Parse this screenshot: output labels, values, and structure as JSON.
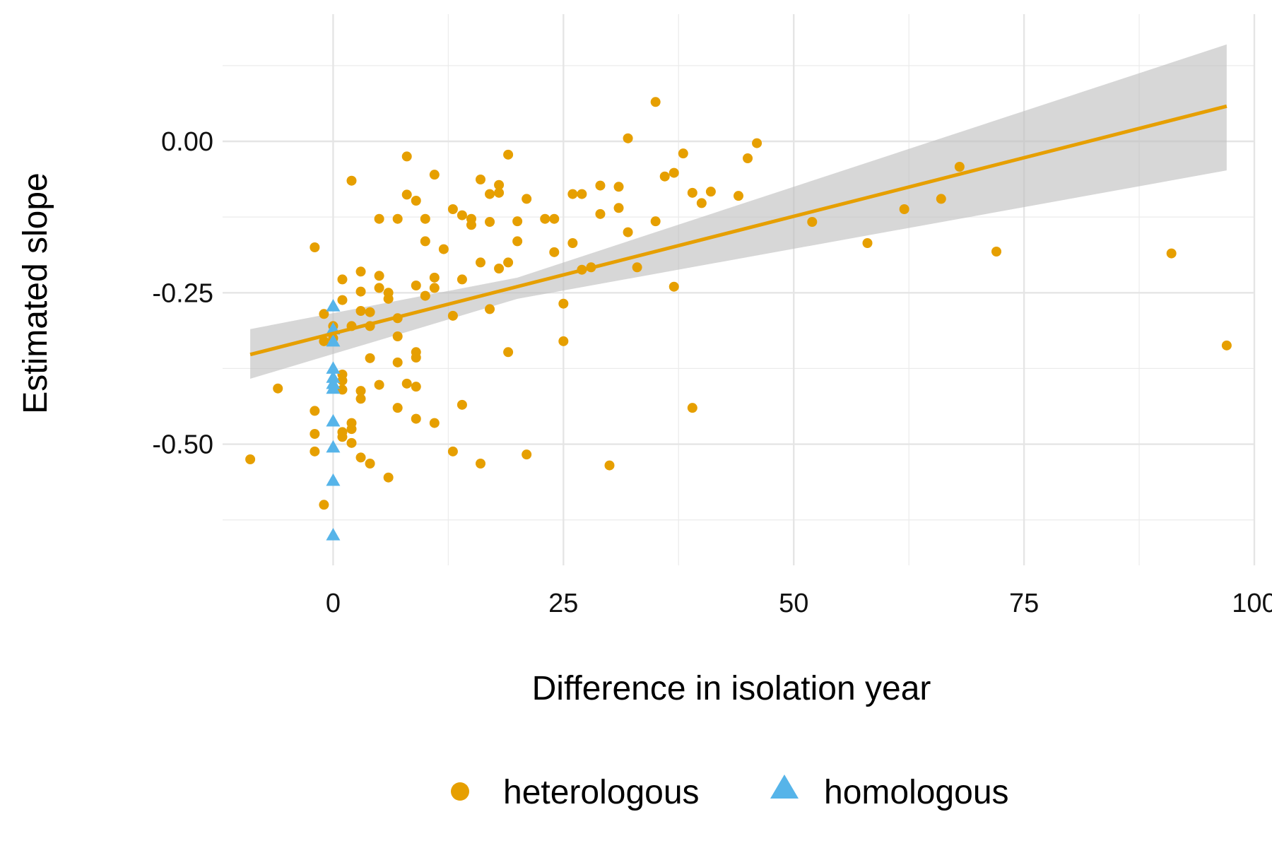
{
  "chart_data": {
    "type": "scatter",
    "title": "",
    "xlabel": "Difference in isolation year",
    "ylabel": "Estimated slope",
    "xlim": [
      -12,
      100
    ],
    "ylim": [
      -0.7,
      0.21
    ],
    "x_ticks": [
      0,
      25,
      50,
      75,
      100
    ],
    "x_tick_labels": [
      "0",
      "25",
      "50",
      "75",
      "100"
    ],
    "y_ticks": [
      -0.5,
      -0.25,
      0,
      0.25
    ],
    "y_tick_labels": [
      "-0.50",
      "-0.25",
      "0.00",
      ""
    ],
    "grid": true,
    "legend_position": "bottom",
    "series": [
      {
        "name": "heterologous",
        "color": "#E69F00",
        "marker": "circle",
        "points": [
          [
            -9,
            -0.525
          ],
          [
            -6,
            -0.408
          ],
          [
            -2,
            -0.175
          ],
          [
            -2,
            -0.445
          ],
          [
            -2,
            -0.483
          ],
          [
            -2,
            -0.512
          ],
          [
            -1,
            -0.285
          ],
          [
            -1,
            -0.33
          ],
          [
            -1,
            -0.6
          ],
          [
            0,
            -0.305
          ],
          [
            0,
            -0.325
          ],
          [
            1,
            -0.228
          ],
          [
            1,
            -0.262
          ],
          [
            1,
            -0.385
          ],
          [
            1,
            -0.395
          ],
          [
            1,
            -0.41
          ],
          [
            1,
            -0.48
          ],
          [
            1,
            -0.488
          ],
          [
            2,
            -0.065
          ],
          [
            2,
            -0.305
          ],
          [
            2,
            -0.465
          ],
          [
            2,
            -0.475
          ],
          [
            2,
            -0.498
          ],
          [
            3,
            -0.215
          ],
          [
            3,
            -0.248
          ],
          [
            3,
            -0.28
          ],
          [
            3,
            -0.412
          ],
          [
            3,
            -0.425
          ],
          [
            3,
            -0.522
          ],
          [
            4,
            -0.282
          ],
          [
            4,
            -0.305
          ],
          [
            4,
            -0.358
          ],
          [
            4,
            -0.532
          ],
          [
            5,
            -0.128
          ],
          [
            5,
            -0.222
          ],
          [
            5,
            -0.242
          ],
          [
            5,
            -0.402
          ],
          [
            6,
            -0.25
          ],
          [
            6,
            -0.26
          ],
          [
            6,
            -0.555
          ],
          [
            7,
            -0.128
          ],
          [
            7,
            -0.292
          ],
          [
            7,
            -0.322
          ],
          [
            7,
            -0.365
          ],
          [
            7,
            -0.44
          ],
          [
            8,
            -0.025
          ],
          [
            8,
            -0.088
          ],
          [
            8,
            -0.4
          ],
          [
            9,
            -0.098
          ],
          [
            9,
            -0.238
          ],
          [
            9,
            -0.348
          ],
          [
            9,
            -0.357
          ],
          [
            9,
            -0.405
          ],
          [
            9,
            -0.458
          ],
          [
            10,
            -0.128
          ],
          [
            10,
            -0.165
          ],
          [
            10,
            -0.255
          ],
          [
            11,
            -0.055
          ],
          [
            11,
            -0.225
          ],
          [
            11,
            -0.242
          ],
          [
            11,
            -0.465
          ],
          [
            12,
            -0.178
          ],
          [
            13,
            -0.112
          ],
          [
            13,
            -0.288
          ],
          [
            13,
            -0.512
          ],
          [
            14,
            -0.122
          ],
          [
            14,
            -0.228
          ],
          [
            14,
            -0.435
          ],
          [
            15,
            -0.128
          ],
          [
            15,
            -0.138
          ],
          [
            16,
            -0.063
          ],
          [
            16,
            -0.2
          ],
          [
            16,
            -0.532
          ],
          [
            17,
            -0.087
          ],
          [
            17,
            -0.133
          ],
          [
            17,
            -0.277
          ],
          [
            18,
            -0.072
          ],
          [
            18,
            -0.085
          ],
          [
            18,
            -0.21
          ],
          [
            19,
            -0.022
          ],
          [
            19,
            -0.2
          ],
          [
            19,
            -0.348
          ],
          [
            20,
            -0.132
          ],
          [
            20,
            -0.165
          ],
          [
            21,
            -0.095
          ],
          [
            21,
            -0.517
          ],
          [
            23,
            -0.128
          ],
          [
            24,
            -0.128
          ],
          [
            24,
            -0.183
          ],
          [
            25,
            -0.268
          ],
          [
            25,
            -0.33
          ],
          [
            26,
            -0.087
          ],
          [
            26,
            -0.168
          ],
          [
            27,
            -0.087
          ],
          [
            27,
            -0.212
          ],
          [
            28,
            -0.208
          ],
          [
            29,
            -0.073
          ],
          [
            29,
            -0.12
          ],
          [
            30,
            -0.535
          ],
          [
            31,
            -0.075
          ],
          [
            31,
            -0.11
          ],
          [
            32,
            0.005
          ],
          [
            32,
            -0.15
          ],
          [
            33,
            -0.208
          ],
          [
            35,
            0.065
          ],
          [
            35,
            -0.132
          ],
          [
            36,
            -0.058
          ],
          [
            37,
            -0.052
          ],
          [
            37,
            -0.24
          ],
          [
            38,
            -0.02
          ],
          [
            39,
            -0.085
          ],
          [
            39,
            -0.44
          ],
          [
            40,
            -0.102
          ],
          [
            41,
            -0.083
          ],
          [
            44,
            -0.09
          ],
          [
            45,
            -0.028
          ],
          [
            46,
            -0.003
          ],
          [
            52,
            -0.133
          ],
          [
            58,
            -0.168
          ],
          [
            62,
            -0.112
          ],
          [
            66,
            -0.095
          ],
          [
            68,
            -0.042
          ],
          [
            72,
            -0.182
          ],
          [
            91,
            -0.185
          ],
          [
            97,
            -0.337
          ]
        ]
      },
      {
        "name": "homologous",
        "color": "#56B4E9",
        "marker": "triangle",
        "points": [
          [
            0,
            -0.272
          ],
          [
            0,
            -0.31
          ],
          [
            0,
            -0.33
          ],
          [
            0,
            -0.375
          ],
          [
            0,
            -0.39
          ],
          [
            0,
            -0.4
          ],
          [
            0,
            -0.408
          ],
          [
            0,
            -0.462
          ],
          [
            0,
            -0.505
          ],
          [
            0,
            -0.56
          ],
          [
            0,
            -0.65
          ]
        ]
      }
    ],
    "fit": {
      "type": "linear",
      "color": "#E69F00",
      "ribbon_color": "#BEBEBE",
      "x_range": [
        -9,
        97
      ],
      "y_start": -0.352,
      "y_end": 0.058,
      "ci_lower": [
        [
          -9,
          -0.392
        ],
        [
          20,
          -0.26
        ],
        [
          97,
          -0.048
        ]
      ],
      "ci_upper": [
        [
          -9,
          -0.31
        ],
        [
          20,
          -0.225
        ],
        [
          97,
          0.16
        ]
      ]
    }
  }
}
